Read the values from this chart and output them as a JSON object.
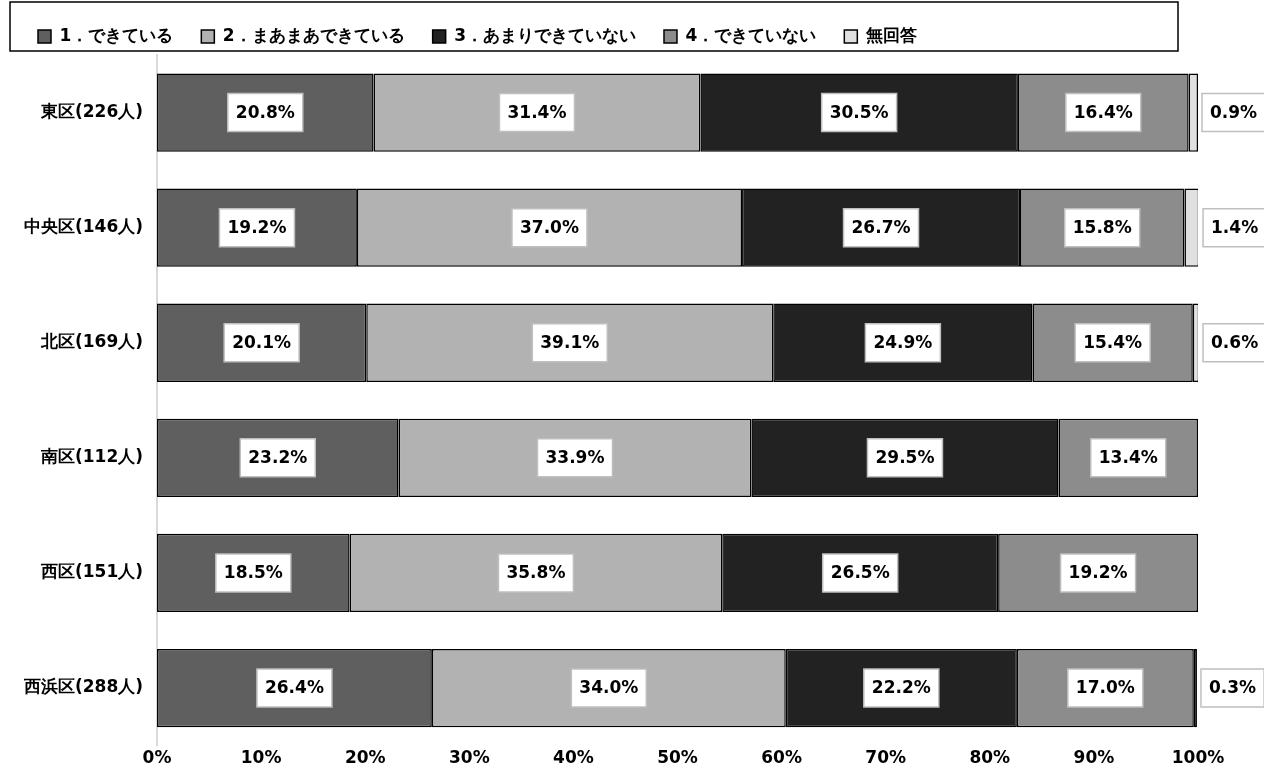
{
  "chart_data": {
    "type": "bar",
    "orientation": "horizontal",
    "stacked": true,
    "legend": "top",
    "categories": [
      "東区(226人)",
      "中央区(146人)",
      "北区(169人)",
      "南区(112人)",
      "西区(151人)",
      "西浜区(288人)"
    ],
    "xlim": [
      0,
      100
    ],
    "xticks": [
      {
        "value": 0,
        "label": "0%"
      },
      {
        "value": 10,
        "label": "10%"
      },
      {
        "value": 20,
        "label": "20%"
      },
      {
        "value": 30,
        "label": "30%"
      },
      {
        "value": 40,
        "label": "40%"
      },
      {
        "value": 50,
        "label": "50%"
      },
      {
        "value": 60,
        "label": "60%"
      },
      {
        "value": 70,
        "label": "70%"
      },
      {
        "value": 80,
        "label": "80%"
      },
      {
        "value": 90,
        "label": "90%"
      },
      {
        "value": 100,
        "label": "100%"
      }
    ],
    "series": [
      {
        "name": "1．できている",
        "color": "#5f5f5f",
        "values": [
          20.8,
          19.2,
          20.1,
          23.2,
          18.5,
          26.4
        ],
        "value_labels": [
          "20.8%",
          "19.2%",
          "20.1%",
          "23.2%",
          "18.5%",
          "26.4%"
        ]
      },
      {
        "name": "2．まあまあできている",
        "color": "#b2b2b2",
        "values": [
          31.4,
          37.0,
          39.1,
          33.9,
          35.8,
          34.0
        ],
        "value_labels": [
          "31.4%",
          "37.0%",
          "39.1%",
          "33.9%",
          "35.8%",
          "34.0%"
        ]
      },
      {
        "name": "3．あまりできていない",
        "color": "#222222",
        "values": [
          30.5,
          26.7,
          24.9,
          29.5,
          26.5,
          22.2
        ],
        "value_labels": [
          "30.5%",
          "26.7%",
          "24.9%",
          "29.5%",
          "26.5%",
          "22.2%"
        ]
      },
      {
        "name": "4．できていない",
        "color": "#8c8c8c",
        "values": [
          16.4,
          15.8,
          15.4,
          13.4,
          19.2,
          17.0
        ],
        "value_labels": [
          "16.4%",
          "15.8%",
          "15.4%",
          "13.4%",
          "19.2%",
          "17.0%"
        ]
      },
      {
        "name": "無回答",
        "color": "#e0e0e0",
        "values": [
          0.9,
          1.4,
          0.6,
          null,
          null,
          0.3
        ],
        "value_labels": [
          "0.9%",
          "1.4%",
          "0.6%",
          null,
          null,
          "0.3%"
        ]
      }
    ]
  }
}
